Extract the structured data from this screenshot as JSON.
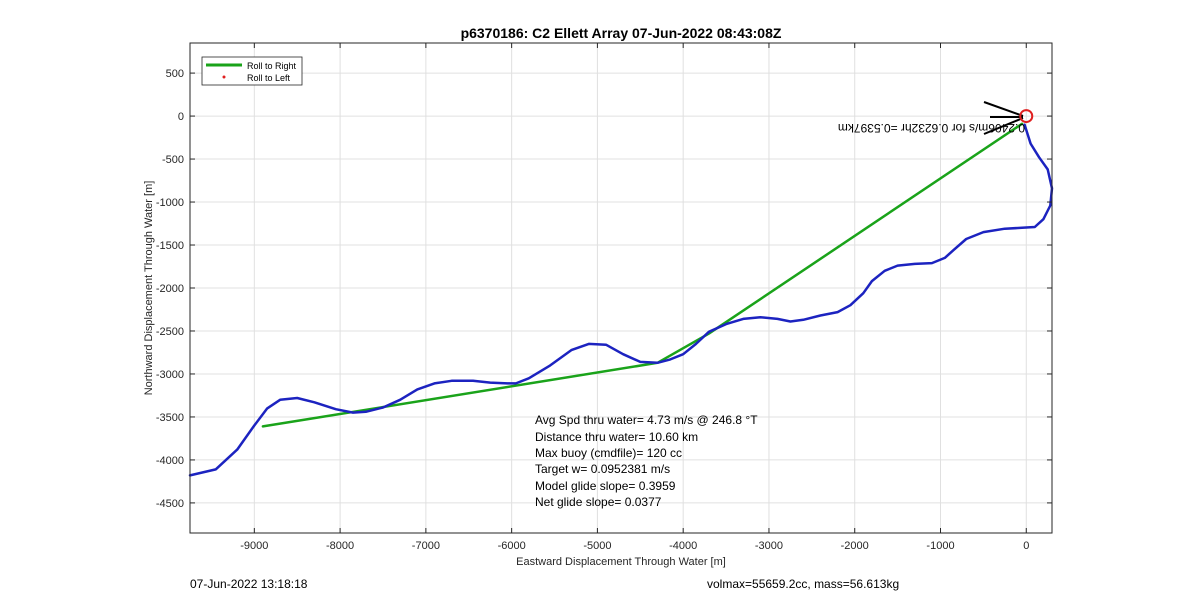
{
  "chart_data": {
    "type": "line",
    "title": "p6370186: C2 Ellett Array 07-Jun-2022 08:43:08Z",
    "xlabel": "Eastward Displacement Through Water [m]",
    "ylabel": "Northward Displacement Through Water [m]",
    "xlim": [
      -9750,
      300
    ],
    "ylim": [
      -4850,
      850
    ],
    "xticks": [
      -9000,
      -8000,
      -7000,
      -6000,
      -5000,
      -4000,
      -3000,
      -2000,
      -1000,
      0
    ],
    "yticks": [
      500,
      0,
      -500,
      -1000,
      -1500,
      -2000,
      -2500,
      -3000,
      -3500,
      -4000,
      -4500
    ],
    "grid": true,
    "legend_position": "top-left",
    "legend": [
      {
        "label": "Roll to Right",
        "color": "#1aa31a",
        "style": "line"
      },
      {
        "label": "Roll to Left",
        "color": "#e02020",
        "style": "dot"
      }
    ],
    "series": [
      {
        "name": "Roll to Right",
        "color": "#1aa31a",
        "points": [
          [
            -8900,
            -3610
          ],
          [
            -4300,
            -2870
          ],
          [
            -3700,
            -2530
          ],
          [
            -50,
            -90
          ]
        ]
      },
      {
        "color": "#1c23c0",
        "points": [
          [
            -9750,
            -4180
          ],
          [
            -9450,
            -4110
          ],
          [
            -9200,
            -3880
          ],
          [
            -9000,
            -3600
          ],
          [
            -8850,
            -3400
          ],
          [
            -8700,
            -3300
          ],
          [
            -8500,
            -3280
          ],
          [
            -8300,
            -3330
          ],
          [
            -8050,
            -3410
          ],
          [
            -7850,
            -3450
          ],
          [
            -7700,
            -3440
          ],
          [
            -7500,
            -3390
          ],
          [
            -7300,
            -3300
          ],
          [
            -7100,
            -3180
          ],
          [
            -6900,
            -3110
          ],
          [
            -6700,
            -3080
          ],
          [
            -6450,
            -3080
          ],
          [
            -6250,
            -3100
          ],
          [
            -6050,
            -3110
          ],
          [
            -5950,
            -3110
          ],
          [
            -5800,
            -3050
          ],
          [
            -5550,
            -2900
          ],
          [
            -5300,
            -2720
          ],
          [
            -5100,
            -2650
          ],
          [
            -4900,
            -2660
          ],
          [
            -4700,
            -2770
          ],
          [
            -4500,
            -2860
          ],
          [
            -4300,
            -2870
          ],
          [
            -4150,
            -2830
          ],
          [
            -4000,
            -2770
          ],
          [
            -3850,
            -2650
          ],
          [
            -3700,
            -2510
          ],
          [
            -3500,
            -2420
          ],
          [
            -3300,
            -2360
          ],
          [
            -3100,
            -2340
          ],
          [
            -2900,
            -2360
          ],
          [
            -2750,
            -2390
          ],
          [
            -2600,
            -2370
          ],
          [
            -2400,
            -2320
          ],
          [
            -2200,
            -2280
          ],
          [
            -2050,
            -2200
          ],
          [
            -1900,
            -2060
          ],
          [
            -1800,
            -1920
          ],
          [
            -1650,
            -1800
          ],
          [
            -1500,
            -1740
          ],
          [
            -1300,
            -1720
          ],
          [
            -1100,
            -1710
          ],
          [
            -950,
            -1650
          ],
          [
            -850,
            -1560
          ],
          [
            -700,
            -1430
          ],
          [
            -500,
            -1350
          ],
          [
            -250,
            -1310
          ],
          [
            -50,
            -1300
          ],
          [
            100,
            -1290
          ],
          [
            200,
            -1200
          ],
          [
            280,
            -1040
          ],
          [
            300,
            -840
          ],
          [
            250,
            -620
          ],
          [
            150,
            -480
          ],
          [
            50,
            -320
          ],
          [
            -20,
            -100
          ]
        ]
      }
    ],
    "marker": {
      "x": 0,
      "y": 0,
      "color": "#e02020",
      "shape": "circle"
    },
    "annotations": [
      {
        "text": "Avg Spd thru water=  4.73 m/s @ 246.8 °T"
      },
      {
        "text": "Distance thru water= 10.60 km"
      },
      {
        "text": "Max buoy (cmdfile)= 120 cc"
      },
      {
        "text": "Target w= 0.0952381 m/s"
      },
      {
        "text": "Model glide slope= 0.3959"
      },
      {
        "text": "Net glide slope= 0.0377"
      },
      {
        "text": "0.2406m/s for 0.6232hr =0.5397km",
        "rotated": true
      }
    ]
  },
  "footer": {
    "timestamp": "07-Jun-2022 13:18:18",
    "volmass": "volmax=55659.2cc, mass=56.613kg"
  }
}
